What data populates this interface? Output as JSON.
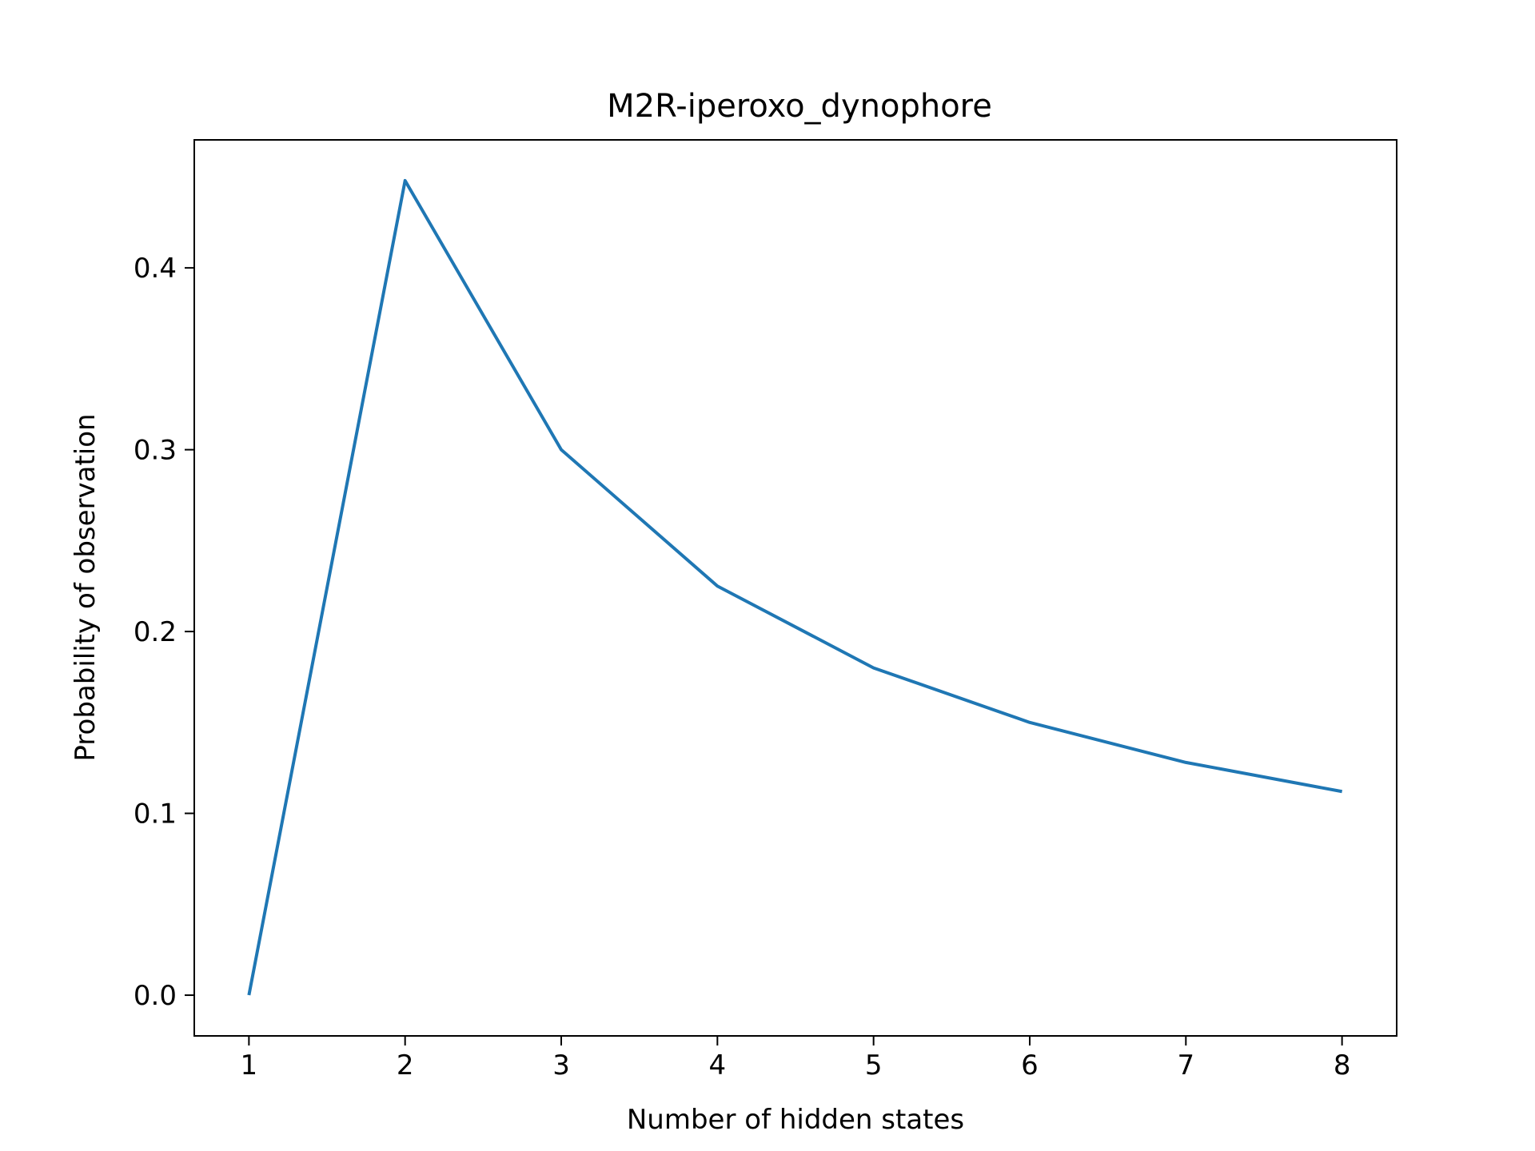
{
  "chart_data": {
    "type": "line",
    "title": "M2R-iperoxo_dynophore",
    "xlabel": "Number of hidden states",
    "ylabel": "Probability of observation",
    "x": [
      1,
      2,
      3,
      4,
      5,
      6,
      7,
      8
    ],
    "series": [
      {
        "values": [
          0.0,
          0.448,
          0.3,
          0.225,
          0.18,
          0.15,
          0.128,
          0.112
        ],
        "color": "#1f77b4"
      }
    ],
    "xticks": [
      "1",
      "2",
      "3",
      "4",
      "5",
      "6",
      "7",
      "8"
    ],
    "yticks": [
      "0.0",
      "0.1",
      "0.2",
      "0.3",
      "0.4"
    ],
    "xlim": [
      0.65,
      8.35
    ],
    "ylim": [
      -0.0224,
      0.4704
    ],
    "grid": false,
    "legend": "none"
  }
}
